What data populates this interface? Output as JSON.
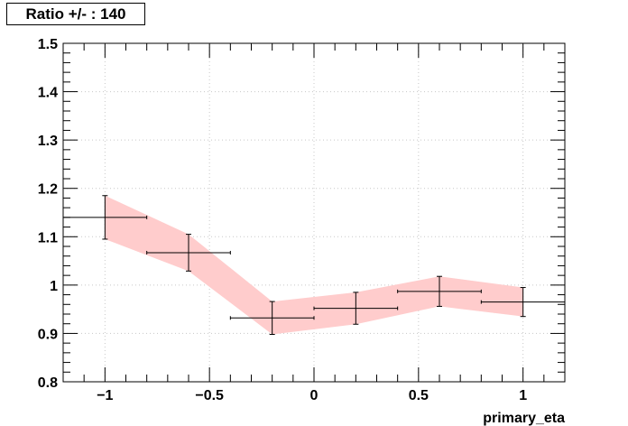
{
  "title": "Ratio +/- : 140",
  "chart_data": {
    "type": "line",
    "title": "Ratio +/- : 140",
    "xlabel": "primary_eta",
    "ylabel": "",
    "xlim": [
      -1.2,
      1.2
    ],
    "ylim": [
      0.8,
      1.5
    ],
    "grid": true,
    "x_ticks": [
      -1,
      -0.5,
      0,
      0.5,
      1
    ],
    "x_tick_labels": [
      "−1",
      "−0.5",
      "0",
      "0.5",
      "1"
    ],
    "y_ticks": [
      0.8,
      0.9,
      1,
      1.1,
      1.2,
      1.3,
      1.4,
      1.5
    ],
    "y_tick_labels": [
      "0.8",
      "0.9",
      "1",
      "1.1",
      "1.2",
      "1.3",
      "1.4",
      "1.5"
    ],
    "band_color": "#ffcccc",
    "marker_color": "#000000",
    "points": [
      {
        "x": -1.0,
        "xlow": -1.2,
        "xhigh": -0.8,
        "y": 1.14,
        "yerr": 0.045
      },
      {
        "x": -0.6,
        "xlow": -0.8,
        "xhigh": -0.4,
        "y": 1.067,
        "yerr": 0.038
      },
      {
        "x": -0.2,
        "xlow": -0.4,
        "xhigh": 0.0,
        "y": 0.932,
        "yerr": 0.034
      },
      {
        "x": 0.2,
        "xlow": 0.0,
        "xhigh": 0.4,
        "y": 0.952,
        "yerr": 0.033
      },
      {
        "x": 0.6,
        "xlow": 0.4,
        "xhigh": 0.8,
        "y": 0.987,
        "yerr": 0.031
      },
      {
        "x": 1.0,
        "xlow": 0.8,
        "xhigh": 1.2,
        "y": 0.965,
        "yerr": 0.03
      }
    ]
  }
}
